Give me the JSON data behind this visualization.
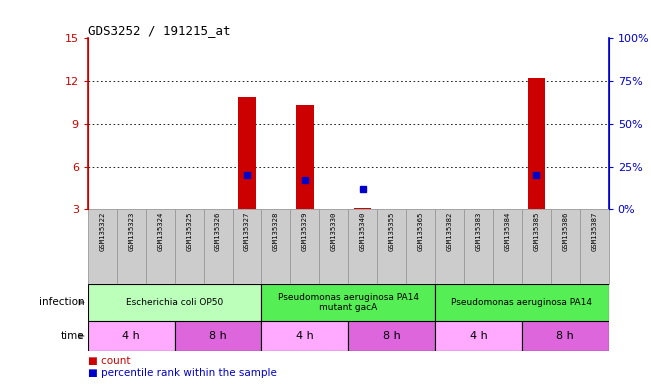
{
  "title": "GDS3252 / 191215_at",
  "samples": [
    "GSM135322",
    "GSM135323",
    "GSM135324",
    "GSM135325",
    "GSM135326",
    "GSM135327",
    "GSM135328",
    "GSM135329",
    "GSM135330",
    "GSM135340",
    "GSM135355",
    "GSM135365",
    "GSM135382",
    "GSM135383",
    "GSM135384",
    "GSM135385",
    "GSM135386",
    "GSM135387"
  ],
  "counts": [
    0,
    0,
    0,
    0,
    0,
    10.9,
    0,
    10.3,
    0,
    3.1,
    0,
    0,
    0,
    0,
    0,
    12.2,
    0,
    0
  ],
  "percentiles": [
    null,
    null,
    null,
    null,
    null,
    20,
    null,
    17,
    null,
    12,
    null,
    null,
    null,
    null,
    null,
    20,
    null,
    null
  ],
  "ylim_left": [
    3,
    15
  ],
  "ylim_right": [
    0,
    100
  ],
  "yticks_left": [
    3,
    6,
    9,
    12,
    15
  ],
  "yticks_right": [
    0,
    25,
    50,
    75,
    100
  ],
  "ytick_labels_right": [
    "0%",
    "25%",
    "50%",
    "75%",
    "100%"
  ],
  "bar_color": "#cc0000",
  "percentile_color": "#0000cc",
  "infection_groups": [
    {
      "label": "Escherichia coli OP50",
      "start": 0,
      "end": 6,
      "color": "#bbffbb"
    },
    {
      "label": "Pseudomonas aeruginosa PA14\nmutant gacA",
      "start": 6,
      "end": 12,
      "color": "#55ee55"
    },
    {
      "label": "Pseudomonas aeruginosa PA14",
      "start": 12,
      "end": 18,
      "color": "#55ee55"
    }
  ],
  "time_groups": [
    {
      "label": "4 h",
      "start": 0,
      "end": 3,
      "color": "#ffaaff"
    },
    {
      "label": "8 h",
      "start": 3,
      "end": 6,
      "color": "#dd66dd"
    },
    {
      "label": "4 h",
      "start": 6,
      "end": 9,
      "color": "#ffaaff"
    },
    {
      "label": "8 h",
      "start": 9,
      "end": 12,
      "color": "#dd66dd"
    },
    {
      "label": "4 h",
      "start": 12,
      "end": 15,
      "color": "#ffaaff"
    },
    {
      "label": "8 h",
      "start": 15,
      "end": 18,
      "color": "#dd66dd"
    }
  ],
  "left_axis_color": "#cc0000",
  "right_axis_color": "#0000cc",
  "sample_bg_color": "#cccccc",
  "sample_border_color": "#999999",
  "fig_bg_color": "#ffffff"
}
